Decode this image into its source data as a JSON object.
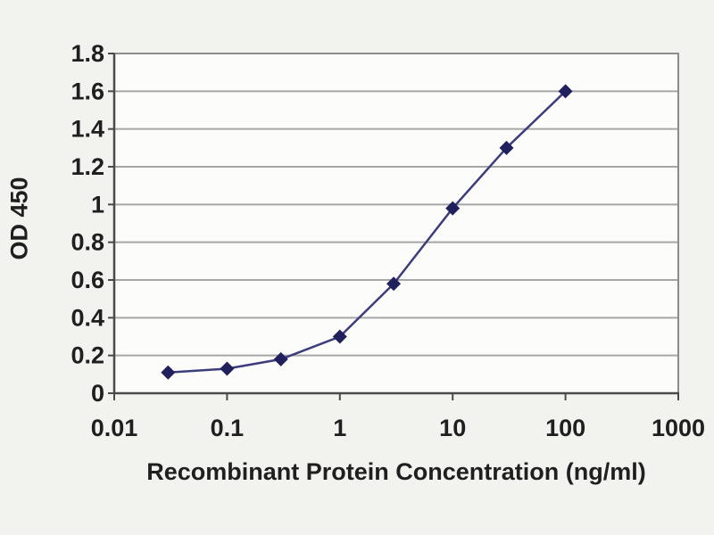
{
  "chart_data": {
    "type": "line",
    "title": "",
    "xlabel": "Recombinant Protein Concentration (ng/ml)",
    "ylabel": "OD 450",
    "x_scale": "log",
    "xlim": [
      0.01,
      1000
    ],
    "ylim": [
      0,
      1.8
    ],
    "grid": "horizontal",
    "legend": "none",
    "marker": "diamond",
    "x": [
      0.03,
      0.1,
      0.3,
      1,
      3,
      10,
      30,
      100
    ],
    "series": [
      {
        "name": "OD 450",
        "values": [
          0.11,
          0.13,
          0.18,
          0.3,
          0.58,
          0.98,
          1.3,
          1.6
        ]
      }
    ],
    "x_ticks": {
      "values": [
        0.01,
        0.1,
        1,
        10,
        100,
        1000
      ],
      "labels": [
        "0.01",
        "0.1",
        "1",
        "10",
        "100",
        "1000"
      ]
    },
    "y_ticks": {
      "values": [
        0,
        0.2,
        0.4,
        0.6,
        0.8,
        1.0,
        1.2,
        1.4,
        1.6,
        1.8
      ],
      "labels": [
        "0",
        "0.2",
        "0.4",
        "0.6",
        "0.8",
        "1",
        "1.2",
        "1.4",
        "1.6",
        "1.8"
      ]
    }
  },
  "colors": {
    "page_bg": "#f2f2ef",
    "plot_bg": "#fcfcfa",
    "gridline": "#a6a6a6",
    "frame": "#8c8c8c",
    "axis": "#4a4a4a",
    "text": "#1f1f1f",
    "series_line": "#3d3d7d",
    "series_marker": "#20205c"
  }
}
